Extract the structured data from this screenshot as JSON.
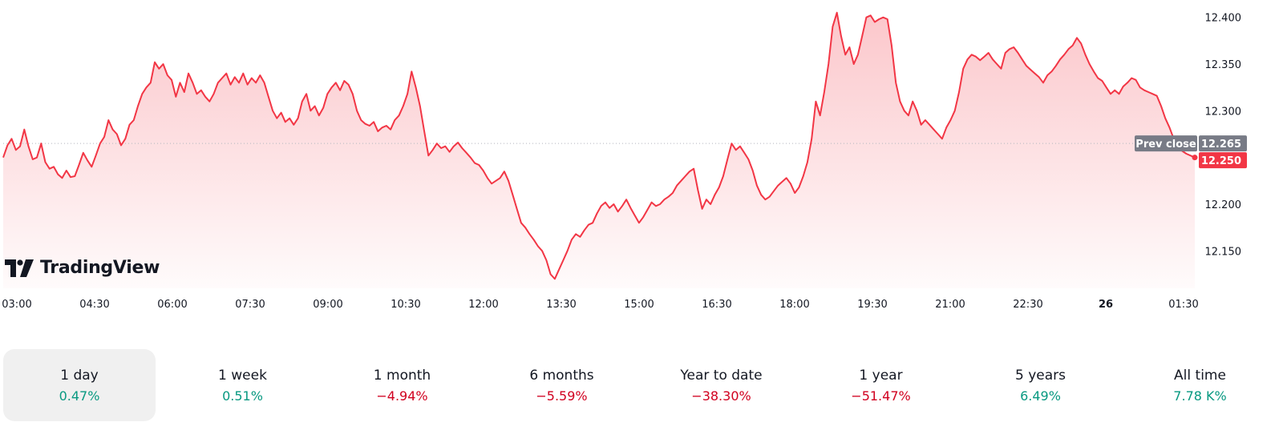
{
  "brand": {
    "name": "TradingView",
    "logo_icon": "tradingview-logo-icon"
  },
  "chart_data": {
    "type": "area",
    "x_ticks": [
      "03:00",
      "04:30",
      "06:00",
      "07:30",
      "09:00",
      "10:30",
      "12:00",
      "13:30",
      "15:00",
      "16:30",
      "18:00",
      "19:30",
      "21:00",
      "22:30",
      "26",
      "01:30"
    ],
    "x_ticks_bold": [
      "26"
    ],
    "y_ticks": [
      "12.400",
      "12.350",
      "12.300",
      "12.200",
      "12.150"
    ],
    "ylim": [
      12.11,
      12.41
    ],
    "prev_close": {
      "label": "Prev close",
      "value": "12.265"
    },
    "last_price": {
      "value": "12.250"
    },
    "series": [
      {
        "values": [
          12.25,
          12.263,
          12.27,
          12.258,
          12.262,
          12.28,
          12.262,
          12.248,
          12.25,
          12.265,
          12.245,
          12.238,
          12.24,
          12.232,
          12.228,
          12.236,
          12.229,
          12.23,
          12.242,
          12.255,
          12.247,
          12.24,
          12.252,
          12.265,
          12.272,
          12.29,
          12.28,
          12.275,
          12.263,
          12.27,
          12.285,
          12.29,
          12.305,
          12.318,
          12.325,
          12.33,
          12.352,
          12.345,
          12.35,
          12.338,
          12.333,
          12.315,
          12.33,
          12.32,
          12.34,
          12.33,
          12.318,
          12.322,
          12.315,
          12.31,
          12.318,
          12.33,
          12.335,
          12.34,
          12.328,
          12.336,
          12.33,
          12.34,
          12.328,
          12.335,
          12.33,
          12.338,
          12.33,
          12.315,
          12.3,
          12.292,
          12.298,
          12.288,
          12.292,
          12.285,
          12.292,
          12.31,
          12.318,
          12.3,
          12.305,
          12.295,
          12.303,
          12.318,
          12.325,
          12.33,
          12.322,
          12.332,
          12.328,
          12.318,
          12.3,
          12.29,
          12.286,
          12.284,
          12.288,
          12.278,
          12.282,
          12.284,
          12.28,
          12.29,
          12.295,
          12.305,
          12.318,
          12.342,
          12.325,
          12.305,
          12.278,
          12.252,
          12.258,
          12.265,
          12.26,
          12.262,
          12.256,
          12.262,
          12.266,
          12.26,
          12.255,
          12.25,
          12.244,
          12.242,
          12.236,
          12.228,
          12.222,
          12.225,
          12.228,
          12.235,
          12.225,
          12.21,
          12.195,
          12.18,
          12.175,
          12.168,
          12.162,
          12.155,
          12.15,
          12.14,
          12.125,
          12.12,
          12.13,
          12.14,
          12.15,
          12.162,
          12.168,
          12.165,
          12.172,
          12.178,
          12.18,
          12.19,
          12.198,
          12.202,
          12.196,
          12.2,
          12.192,
          12.198,
          12.205,
          12.196,
          12.188,
          12.18,
          12.186,
          12.194,
          12.202,
          12.198,
          12.2,
          12.205,
          12.208,
          12.212,
          12.22,
          12.225,
          12.23,
          12.235,
          12.238,
          12.215,
          12.195,
          12.205,
          12.2,
          12.21,
          12.218,
          12.23,
          12.248,
          12.265,
          12.258,
          12.262,
          12.255,
          12.248,
          12.236,
          12.22,
          12.21,
          12.205,
          12.208,
          12.214,
          12.22,
          12.224,
          12.228,
          12.222,
          12.212,
          12.218,
          12.23,
          12.245,
          12.27,
          12.31,
          12.295,
          12.32,
          12.35,
          12.39,
          12.405,
          12.38,
          12.36,
          12.368,
          12.35,
          12.36,
          12.38,
          12.4,
          12.402,
          12.395,
          12.398,
          12.4,
          12.398,
          12.37,
          12.33,
          12.31,
          12.3,
          12.295,
          12.31,
          12.3,
          12.285,
          12.29,
          12.285,
          12.28,
          12.275,
          12.27,
          12.282,
          12.29,
          12.3,
          12.32,
          12.345,
          12.355,
          12.36,
          12.358,
          12.354,
          12.358,
          12.362,
          12.355,
          12.35,
          12.345,
          12.362,
          12.366,
          12.368,
          12.362,
          12.355,
          12.348,
          12.344,
          12.34,
          12.336,
          12.33,
          12.338,
          12.342,
          12.348,
          12.355,
          12.36,
          12.366,
          12.37,
          12.378,
          12.372,
          12.36,
          12.35,
          12.342,
          12.335,
          12.332,
          12.325,
          12.318,
          12.322,
          12.318,
          12.326,
          12.33,
          12.335,
          12.333,
          12.325,
          12.322,
          12.32,
          12.318,
          12.316,
          12.305,
          12.292,
          12.282,
          12.27,
          12.262,
          12.257,
          12.254,
          12.252,
          12.25
        ]
      }
    ]
  },
  "ranges": [
    {
      "label": "1 day",
      "value": "0.47%",
      "trend": "pos",
      "active": true
    },
    {
      "label": "1 week",
      "value": "0.51%",
      "trend": "pos",
      "active": false
    },
    {
      "label": "1 month",
      "value": "−4.94%",
      "trend": "neg",
      "active": false
    },
    {
      "label": "6 months",
      "value": "−5.59%",
      "trend": "neg",
      "active": false
    },
    {
      "label": "Year to date",
      "value": "−38.30%",
      "trend": "neg",
      "active": false
    },
    {
      "label": "1 year",
      "value": "−51.47%",
      "trend": "neg",
      "active": false
    },
    {
      "label": "5 years",
      "value": "6.49%",
      "trend": "pos",
      "active": false
    },
    {
      "label": "All time",
      "value": "7.78 K%",
      "trend": "pos",
      "active": false
    }
  ],
  "colors": {
    "line": "#f23645",
    "positive": "#089981",
    "negative": "#d1001f",
    "prev_close_tag": "#787b86",
    "grid_dotted": "#b2b5be"
  }
}
